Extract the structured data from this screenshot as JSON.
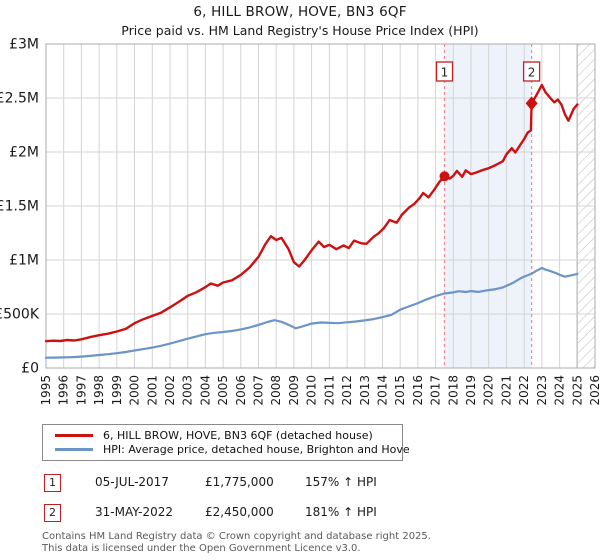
{
  "title": "6, HILL BROW, HOVE, BN3 6QF",
  "subtitle": "Price paid vs. HM Land Registry's House Price Index (HPI)",
  "colors": {
    "property_line": "#cc1111",
    "hpi_line": "#6c94c8",
    "event_line": "#e68c8c",
    "event_band": "#edf2fb",
    "grid": "#d4d4d4",
    "plot_border": "#ababab",
    "hatch": "#c4c4c4",
    "hatch_edge": "#8f8f8f",
    "annotation_border": "#c02020",
    "footer_text": "#595959"
  },
  "chart_data": {
    "type": "line",
    "title": "6, HILL BROW, HOVE, BN3 6QF — Price paid vs. HPI",
    "x_axis": {
      "min": 1995,
      "max": 2026,
      "tick_labels": [
        "1995",
        "1996",
        "1997",
        "1998",
        "1999",
        "2000",
        "2001",
        "2002",
        "2003",
        "2004",
        "2005",
        "2006",
        "2007",
        "2008",
        "2009",
        "2010",
        "2011",
        "2012",
        "2013",
        "2014",
        "2015",
        "2016",
        "2017",
        "2018",
        "2019",
        "2020",
        "2021",
        "2022",
        "2023",
        "2024",
        "2025",
        "2026"
      ]
    },
    "y_axis": {
      "min": 0,
      "max": 3000000,
      "ticks": [
        {
          "label": "£0",
          "value": 0
        },
        {
          "label": "£500K",
          "value": 500000
        },
        {
          "label": "£1M",
          "value": 1000000
        },
        {
          "label": "£1.5M",
          "value": 1500000
        },
        {
          "label": "£2M",
          "value": 2000000
        },
        {
          "label": "£2.5M",
          "value": 2500000
        },
        {
          "label": "£3M",
          "value": 3000000
        }
      ]
    },
    "grid": true,
    "legend_position": "bottom",
    "series": [
      {
        "name": "6, HILL BROW, HOVE, BN3 6QF (detached house)",
        "color": "#cc1111",
        "x": [
          1995.0,
          1995.4,
          1995.8,
          1996.2,
          1996.6,
          1997.0,
          1997.5,
          1998.0,
          1998.5,
          1999.0,
          1999.5,
          2000.0,
          2000.5,
          2001.0,
          2001.5,
          2002.0,
          2002.5,
          2003.0,
          2003.5,
          2004.0,
          2004.3,
          2004.7,
          2005.0,
          2005.5,
          2006.0,
          2006.5,
          2007.0,
          2007.4,
          2007.7,
          2008.0,
          2008.3,
          2008.7,
          2009.0,
          2009.3,
          2009.6,
          2010.0,
          2010.4,
          2010.7,
          2011.0,
          2011.4,
          2011.8,
          2012.1,
          2012.4,
          2012.8,
          2013.1,
          2013.5,
          2013.8,
          2014.1,
          2014.4,
          2014.8,
          2015.1,
          2015.5,
          2015.8,
          2016.1,
          2016.3,
          2016.6,
          2016.9,
          2017.2,
          2017.5,
          2017.8,
          2018.0,
          2018.2,
          2018.5,
          2018.7,
          2019.0,
          2019.3,
          2019.6,
          2020.0,
          2020.4,
          2020.8,
          2021.0,
          2021.3,
          2021.5,
          2021.8,
          2022.0,
          2022.2,
          2022.38,
          2022.42,
          2022.7,
          2023.0,
          2023.2,
          2023.5,
          2023.7,
          2023.9,
          2024.1,
          2024.3,
          2024.5,
          2024.8,
          2025.0
        ],
        "values": [
          248000,
          253000,
          250000,
          259000,
          255000,
          266000,
          286000,
          304000,
          318000,
          338000,
          362000,
          415000,
          452000,
          482000,
          512000,
          562000,
          612000,
          668000,
          702000,
          748000,
          782000,
          762000,
          792000,
          812000,
          862000,
          932000,
          1030000,
          1150000,
          1220000,
          1185000,
          1205000,
          1100000,
          980000,
          940000,
          1000000,
          1090000,
          1170000,
          1120000,
          1140000,
          1100000,
          1135000,
          1110000,
          1180000,
          1155000,
          1150000,
          1215000,
          1250000,
          1300000,
          1370000,
          1345000,
          1420000,
          1485000,
          1520000,
          1575000,
          1620000,
          1580000,
          1645000,
          1720000,
          1775000,
          1755000,
          1780000,
          1825000,
          1770000,
          1830000,
          1795000,
          1810000,
          1830000,
          1850000,
          1880000,
          1915000,
          1980000,
          2035000,
          1995000,
          2070000,
          2120000,
          2180000,
          2200000,
          2450000,
          2530000,
          2620000,
          2555000,
          2495000,
          2460000,
          2485000,
          2440000,
          2350000,
          2290000,
          2400000,
          2440000
        ]
      },
      {
        "name": "HPI: Average price, detached house, Brighton and Hove",
        "color": "#6c94c8",
        "x": [
          1995.0,
          1995.5,
          1996.0,
          1996.5,
          1997.0,
          1997.5,
          1998.0,
          1998.5,
          1999.0,
          1999.5,
          2000.0,
          2000.5,
          2001.0,
          2001.5,
          2002.0,
          2002.5,
          2003.0,
          2003.5,
          2004.0,
          2004.5,
          2005.0,
          2005.5,
          2006.0,
          2006.5,
          2007.0,
          2007.5,
          2007.9,
          2008.3,
          2008.7,
          2009.1,
          2009.5,
          2010.0,
          2010.5,
          2011.0,
          2011.5,
          2012.0,
          2012.5,
          2013.0,
          2013.5,
          2014.0,
          2014.5,
          2015.0,
          2015.5,
          2016.0,
          2016.5,
          2017.0,
          2017.5,
          2018.0,
          2018.3,
          2018.7,
          2019.0,
          2019.4,
          2019.8,
          2020.0,
          2020.4,
          2020.8,
          2021.0,
          2021.4,
          2021.8,
          2022.0,
          2022.4,
          2022.7,
          2023.0,
          2023.2,
          2023.5,
          2023.8,
          2024.0,
          2024.3,
          2024.6,
          2025.0
        ],
        "values": [
          95000,
          96000,
          98000,
          101000,
          106000,
          112000,
          120000,
          128000,
          137000,
          148000,
          162000,
          175000,
          189000,
          206000,
          226000,
          248000,
          271000,
          293000,
          313000,
          326000,
          333000,
          343000,
          357000,
          376000,
          399000,
          426000,
          443000,
          428000,
          400000,
          368000,
          386000,
          411000,
          421000,
          418000,
          415000,
          423000,
          431000,
          441000,
          453000,
          471000,
          492000,
          540000,
          570000,
          601000,
          636000,
          666000,
          690000,
          700000,
          711000,
          704000,
          712000,
          705000,
          716000,
          721000,
          731000,
          746000,
          761000,
          791000,
          831000,
          846000,
          871000,
          901000,
          926000,
          911000,
          896000,
          879000,
          863000,
          845000,
          856000,
          871000
        ]
      }
    ],
    "events": [
      {
        "label": "1",
        "x": 2017.5,
        "y": 1775000,
        "marker": "circle"
      },
      {
        "label": "2",
        "x": 2022.42,
        "y": 2450000,
        "marker": "diamond"
      }
    ],
    "shaded_band": {
      "from": 2017.5,
      "to": 2022.42
    },
    "hatch_from": 2025.0
  },
  "legend": {
    "items": [
      {
        "label": "6, HILL BROW, HOVE, BN3 6QF (detached house)",
        "swatch": "property_line"
      },
      {
        "label": "HPI: Average price, detached house, Brighton and Hove",
        "swatch": "hpi_line"
      }
    ]
  },
  "annotations": [
    {
      "num": "1",
      "date": "05-JUL-2017",
      "price": "£1,775,000",
      "hpi": "157% ↑ HPI"
    },
    {
      "num": "2",
      "date": "31-MAY-2022",
      "price": "£2,450,000",
      "hpi": "181% ↑ HPI"
    }
  ],
  "footer": {
    "line1": "Contains HM Land Registry data © Crown copyright and database right 2025.",
    "line2": "This data is licensed under the Open Government Licence v3.0."
  }
}
